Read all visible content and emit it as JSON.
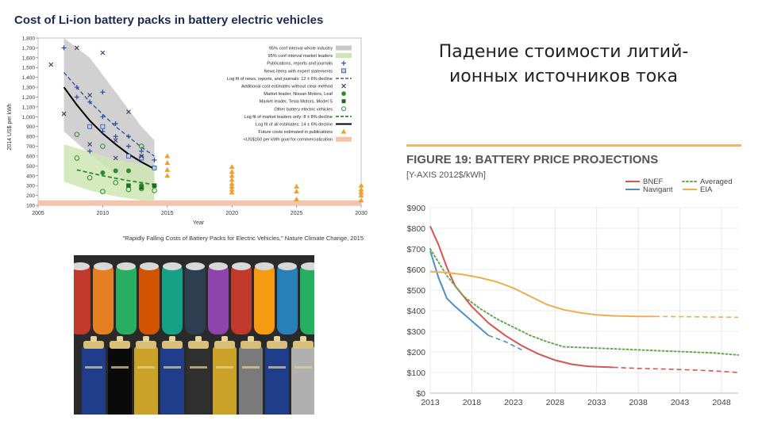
{
  "slide": {
    "title": "Падение стоимости литий-ионных источников тока"
  },
  "colors": {
    "ci_whole": "#c9c9c9",
    "ci_leaders": "#cfe6b4",
    "publications": "#2b4f9e",
    "news": "#2b4f9e",
    "additional": "#3a3a5a",
    "nissan": "#2f8a2f",
    "tesla": "#1e6d1e",
    "other": "#2f8a2f",
    "fit_leaders": "#2f8a2f",
    "fit_all": "#000000",
    "future": "#f0a030",
    "goal": "#f6c2a8",
    "bnef": "#d9534f",
    "navigant": "#4f8fc7",
    "averaged": "#6aa84f",
    "eia": "#f0ad4e"
  },
  "chart_data": [
    {
      "type": "scatter",
      "title": "Cost of Li-ion battery packs in battery electric vehicles",
      "ylabel": "2014 US$ per kWh",
      "xlabel": "Year",
      "xlim": [
        2005,
        2030
      ],
      "ylim": [
        100,
        1800
      ],
      "xticks": [
        2005,
        2010,
        2015,
        2020,
        2025,
        2030
      ],
      "yticks": [
        100,
        200,
        300,
        400,
        500,
        600,
        700,
        800,
        900,
        1000,
        1100,
        1200,
        1300,
        1400,
        1500,
        1600,
        1700,
        1800
      ],
      "source": "\"Rapidly Falling Costs of Battery Packs for Electric Vehicles,\" Nature Climate Change, 2015",
      "legend_position": "top-right",
      "legend": [
        "95% conf interval whole industry",
        "95% conf interval market leaders",
        "Publications, reports and journals",
        "News items with expert statements",
        "Log fit of news, reports, and journals: 12 ± 6% decline",
        "Additional cost estimates without clear method",
        "Market leader, Nissan Motors, Leaf",
        "Market leader, Tesla Motors, Model S",
        "Other battery electric vehicles",
        "Log fit of market leaders only: 8 ± 8% decline",
        "Log fit of all estimates: 14 ± 6% decline",
        "Future costs estimated in publications",
        "<US$150 per kWh goal for commercialization"
      ],
      "ci_whole": {
        "x": [
          2007,
          2009,
          2011,
          2013,
          2014
        ],
        "upper": [
          1800,
          1600,
          1250,
          900,
          760
        ],
        "lower": [
          850,
          620,
          420,
          290,
          250
        ]
      },
      "ci_leaders": {
        "x": [
          2007,
          2009,
          2011,
          2013,
          2014
        ],
        "upper": [
          720,
          640,
          560,
          520,
          500
        ],
        "lower": [
          340,
          250,
          190,
          150,
          140
        ]
      },
      "fit_all": {
        "x": [
          2007,
          2008,
          2009,
          2010,
          2011,
          2012,
          2013,
          2014
        ],
        "y": [
          1300,
          1120,
          960,
          830,
          720,
          620,
          540,
          470
        ]
      },
      "fit_leaders": {
        "x": [
          2008,
          2010,
          2012,
          2014
        ],
        "y": [
          460,
          400,
          350,
          310
        ]
      },
      "fit_publications": {
        "x": [
          2007,
          2009,
          2011,
          2013,
          2014
        ],
        "y": [
          1450,
          1150,
          900,
          690,
          600
        ]
      },
      "goal": {
        "y0": 100,
        "y1": 150
      },
      "publications": [
        [
          2007,
          1700
        ],
        [
          2008,
          1300
        ],
        [
          2008,
          1200
        ],
        [
          2009,
          1150
        ],
        [
          2010,
          1250
        ],
        [
          2010,
          1000
        ],
        [
          2010,
          850
        ],
        [
          2011,
          930
        ],
        [
          2011,
          800
        ],
        [
          2012,
          800
        ],
        [
          2012,
          700
        ],
        [
          2013,
          650
        ],
        [
          2013,
          590
        ],
        [
          2014,
          560
        ],
        [
          2009,
          650
        ]
      ],
      "news": [
        [
          2009,
          900
        ],
        [
          2010,
          900
        ],
        [
          2012,
          600
        ],
        [
          2013,
          580
        ],
        [
          2014,
          480
        ]
      ],
      "additional": [
        [
          2006,
          1530
        ],
        [
          2007,
          1030
        ],
        [
          2008,
          1700
        ],
        [
          2009,
          1220
        ],
        [
          2010,
          1650
        ],
        [
          2012,
          1050
        ],
        [
          2011,
          760
        ],
        [
          2009,
          720
        ],
        [
          2013,
          600
        ],
        [
          2011,
          580
        ]
      ],
      "nissan": [
        [
          2010,
          430
        ],
        [
          2011,
          450
        ],
        [
          2013,
          300
        ],
        [
          2012,
          450
        ]
      ],
      "tesla": [
        [
          2013,
          280
        ],
        [
          2012,
          300
        ],
        [
          2014,
          300
        ]
      ],
      "other": [
        [
          2008,
          580
        ],
        [
          2010,
          240
        ],
        [
          2011,
          330
        ],
        [
          2012,
          260
        ],
        [
          2013,
          270
        ],
        [
          2014,
          250
        ],
        [
          2009,
          380
        ],
        [
          2013,
          700
        ],
        [
          2010,
          700
        ],
        [
          2008,
          820
        ]
      ],
      "future": [
        [
          2015,
          600
        ],
        [
          2015,
          530
        ],
        [
          2015,
          460
        ],
        [
          2015,
          400
        ],
        [
          2020,
          490
        ],
        [
          2020,
          440
        ],
        [
          2020,
          400
        ],
        [
          2020,
          360
        ],
        [
          2020,
          320
        ],
        [
          2020,
          290
        ],
        [
          2020,
          260
        ],
        [
          2020,
          230
        ],
        [
          2025,
          290
        ],
        [
          2025,
          240
        ],
        [
          2025,
          160
        ],
        [
          2030,
          300
        ],
        [
          2030,
          260
        ],
        [
          2030,
          230
        ],
        [
          2030,
          200
        ],
        [
          2030,
          150
        ]
      ]
    },
    {
      "type": "line",
      "title": "FIGURE 19: BATTERY PRICE PROJECTIONS",
      "subtitle": "[Y-AXIS 2012$/kWh]",
      "xlim": [
        2013,
        2050
      ],
      "ylim": [
        0,
        900
      ],
      "xticks": [
        2013,
        2018,
        2023,
        2028,
        2033,
        2038,
        2043,
        2048
      ],
      "ytick_values": [
        0,
        100,
        200,
        300,
        400,
        500,
        600,
        700,
        800,
        900
      ],
      "ytick_labels": [
        "$0",
        "$100",
        "$200",
        "$300",
        "$400",
        "$500",
        "$600",
        "$700",
        "$800",
        "$900"
      ],
      "legend_position": "top-right",
      "series": [
        {
          "name": "BNEF",
          "x": [
            2013,
            2014,
            2015,
            2016,
            2018,
            2020,
            2022,
            2024,
            2026,
            2028,
            2030,
            2032,
            2035
          ],
          "y": [
            810,
            720,
            610,
            520,
            420,
            340,
            280,
            230,
            190,
            160,
            140,
            130,
            125
          ],
          "solid_until": 2035,
          "dashed": {
            "x": [
              2035,
              2038,
              2041,
              2044,
              2047,
              2050
            ],
            "y": [
              125,
              120,
              117,
              113,
              108,
              100
            ]
          }
        },
        {
          "name": "Navigant",
          "x": [
            2013,
            2014,
            2015,
            2016,
            2018,
            2020
          ],
          "y": [
            690,
            560,
            460,
            420,
            350,
            280
          ],
          "dashed": {
            "x": [
              2020,
              2022,
              2024
            ],
            "y": [
              280,
              250,
              210
            ]
          }
        },
        {
          "name": "Averaged",
          "x": [
            2013,
            2015,
            2017,
            2019,
            2021,
            2023,
            2025,
            2027,
            2029,
            2032,
            2035,
            2038,
            2041,
            2044,
            2047,
            2050
          ],
          "y": [
            700,
            570,
            470,
            410,
            360,
            320,
            280,
            250,
            225,
            220,
            215,
            210,
            205,
            200,
            195,
            185
          ],
          "dotted": true
        },
        {
          "name": "EIA",
          "x": [
            2013,
            2015,
            2017,
            2019,
            2021,
            2023,
            2025,
            2027,
            2029,
            2031,
            2033,
            2035,
            2038,
            2040
          ],
          "y": [
            590,
            585,
            575,
            560,
            540,
            510,
            470,
            430,
            405,
            390,
            380,
            375,
            372,
            372
          ],
          "dashed": {
            "x": [
              2040,
              2045,
              2050
            ],
            "y": [
              372,
              370,
              368
            ]
          }
        }
      ]
    }
  ]
}
